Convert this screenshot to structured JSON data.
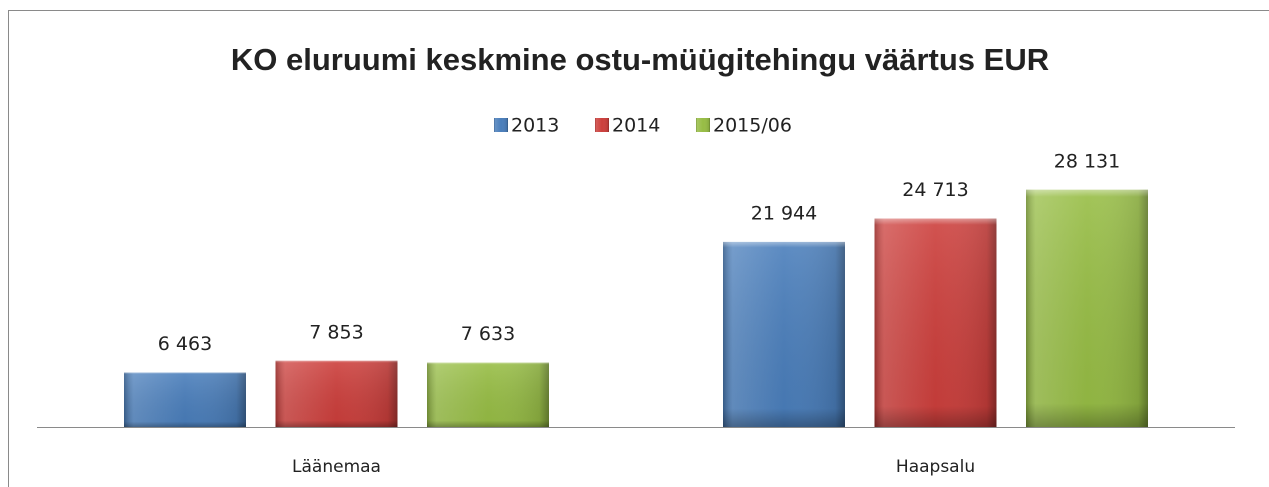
{
  "chart_data": {
    "type": "bar",
    "title": "KO eluruumi keskmine  ostu-müügitehingu väärtus EUR",
    "categories": [
      "Läänemaa",
      "Haapsalu"
    ],
    "series": [
      {
        "name": "2013",
        "color": "#4a7ebb",
        "values": [
          6463,
          21944
        ],
        "value_labels": [
          "6 463",
          "21 944"
        ]
      },
      {
        "name": "2014",
        "color": "#cc3f3c",
        "values": [
          7853,
          24713
        ],
        "value_labels": [
          "7 853",
          "24 713"
        ]
      },
      {
        "name": "2015/06",
        "color": "#97bd45",
        "values": [
          7633,
          28131
        ],
        "value_labels": [
          "7 633",
          "28 131"
        ]
      }
    ],
    "ylim": [
      0,
      30000
    ],
    "legend": "top"
  }
}
